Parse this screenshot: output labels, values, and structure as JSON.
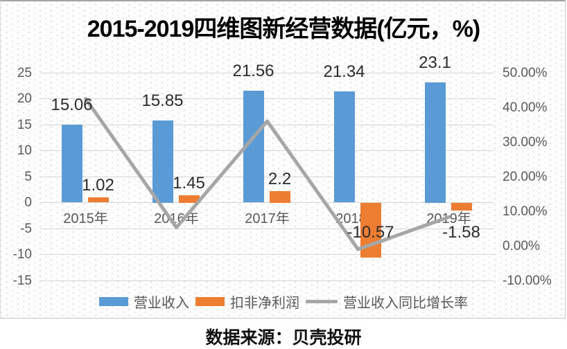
{
  "title": "2015-2019四维图新经营数据(亿元，%)",
  "source": "数据来源：贝壳投研",
  "colors": {
    "revenue_bar": "#5b9bd5",
    "profit_bar": "#ed7d31",
    "growth_line": "#a6a6a6",
    "gridline": "#d6d6d6",
    "tick_text": "#595959",
    "data_label_text": "#2b2b2b",
    "title_text": "#000000"
  },
  "chart_data": {
    "type": "bar",
    "subtype": "combo-bar-line-dual-axis",
    "title": "2015-2019四维图新经营数据(亿元，%)",
    "categories": [
      "2015年",
      "2016年",
      "2017年",
      "2018年",
      "2019年"
    ],
    "series": [
      {
        "name": "营业收入",
        "kind": "bar",
        "axis": "left",
        "unit": "亿元",
        "color": "#5b9bd5",
        "values": [
          15.06,
          15.85,
          21.56,
          21.34,
          23.1
        ],
        "labels": [
          "15.06",
          "15.85",
          "21.56",
          "21.34",
          "23.1"
        ]
      },
      {
        "name": "扣非净利润",
        "kind": "bar",
        "axis": "left",
        "unit": "亿元",
        "color": "#ed7d31",
        "values": [
          1.02,
          1.45,
          2.2,
          -10.57,
          -1.58
        ],
        "labels": [
          "1.02",
          "1.45",
          "2.2",
          "-10.57",
          "-1.58"
        ]
      },
      {
        "name": "营业收入同比增长率",
        "kind": "line",
        "axis": "right",
        "unit": "%",
        "color": "#a6a6a6",
        "values": [
          42.5,
          5.3,
          36.0,
          -1.0,
          8.3
        ]
      }
    ],
    "left_axis": {
      "min": -15,
      "max": 25,
      "step": 5,
      "ticks": [
        "25",
        "20",
        "15",
        "10",
        "5",
        "0",
        "-5",
        "-10",
        "-15"
      ]
    },
    "right_axis": {
      "min": -10,
      "max": 50,
      "step": 10,
      "ticks": [
        "50.00%",
        "40.00%",
        "30.00%",
        "20.00%",
        "10.00%",
        "0.00%",
        "-10.00%"
      ]
    },
    "grid": true,
    "legend_position": "bottom",
    "legend": [
      {
        "label": "营业收入",
        "swatch": "rect",
        "color": "#5b9bd5"
      },
      {
        "label": "扣非净利润",
        "swatch": "rect",
        "color": "#ed7d31"
      },
      {
        "label": "营业收入同比增长率",
        "swatch": "line",
        "color": "#a6a6a6"
      }
    ]
  }
}
